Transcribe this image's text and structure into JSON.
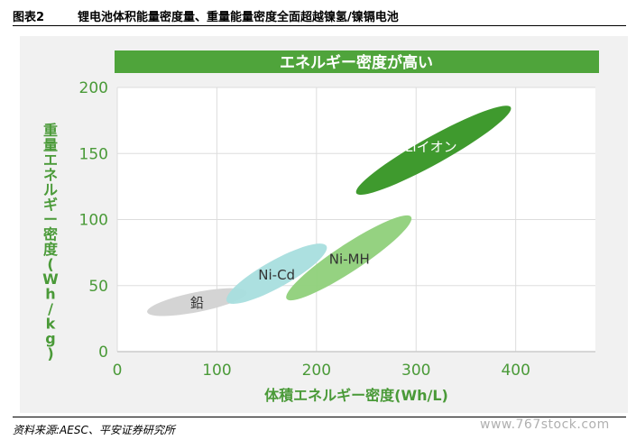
{
  "header": {
    "figure_number": "图表2",
    "title": "锂电池体积能量密度量、重量能量密度全面超越镍氢/镍镉电池"
  },
  "footer": {
    "source": "资料来源:AESC、平安证券研究所",
    "watermark": "www.767stock.com"
  },
  "colors": {
    "banner": "#4fa43b",
    "li_ion": "#3f9a2e",
    "ni_mh": "#8fd07a",
    "ni_cd": "#a8dede",
    "lead": "#d4d4d4",
    "axis_text": "#4a9a38"
  },
  "chart_data": {
    "type": "scatter",
    "title": "エネルギー密度が高い",
    "xlabel": "体積エネルギー密度(Wh/L)",
    "ylabel": "重量エネルギー密度(Wh/kg)",
    "xlim": [
      0,
      480
    ],
    "ylim": [
      0,
      200
    ],
    "xticks": [
      0,
      100,
      200,
      300,
      400
    ],
    "yticks": [
      0,
      50,
      100,
      150,
      200
    ],
    "grid": true,
    "series": [
      {
        "name": "鉛",
        "x_range": [
          30,
          130
        ],
        "y_range": [
          30,
          45
        ],
        "center": [
          80,
          37
        ]
      },
      {
        "name": "Ni-Cd",
        "x_range": [
          110,
          210
        ],
        "y_range": [
          38,
          80
        ],
        "center": [
          160,
          58
        ]
      },
      {
        "name": "Ni-MH",
        "x_range": [
          170,
          295
        ],
        "y_range": [
          40,
          102
        ],
        "center": [
          233,
          70
        ]
      },
      {
        "name": "Liイオン",
        "x_range": [
          240,
          395
        ],
        "y_range": [
          120,
          185
        ],
        "center": [
          315,
          155
        ]
      }
    ]
  }
}
